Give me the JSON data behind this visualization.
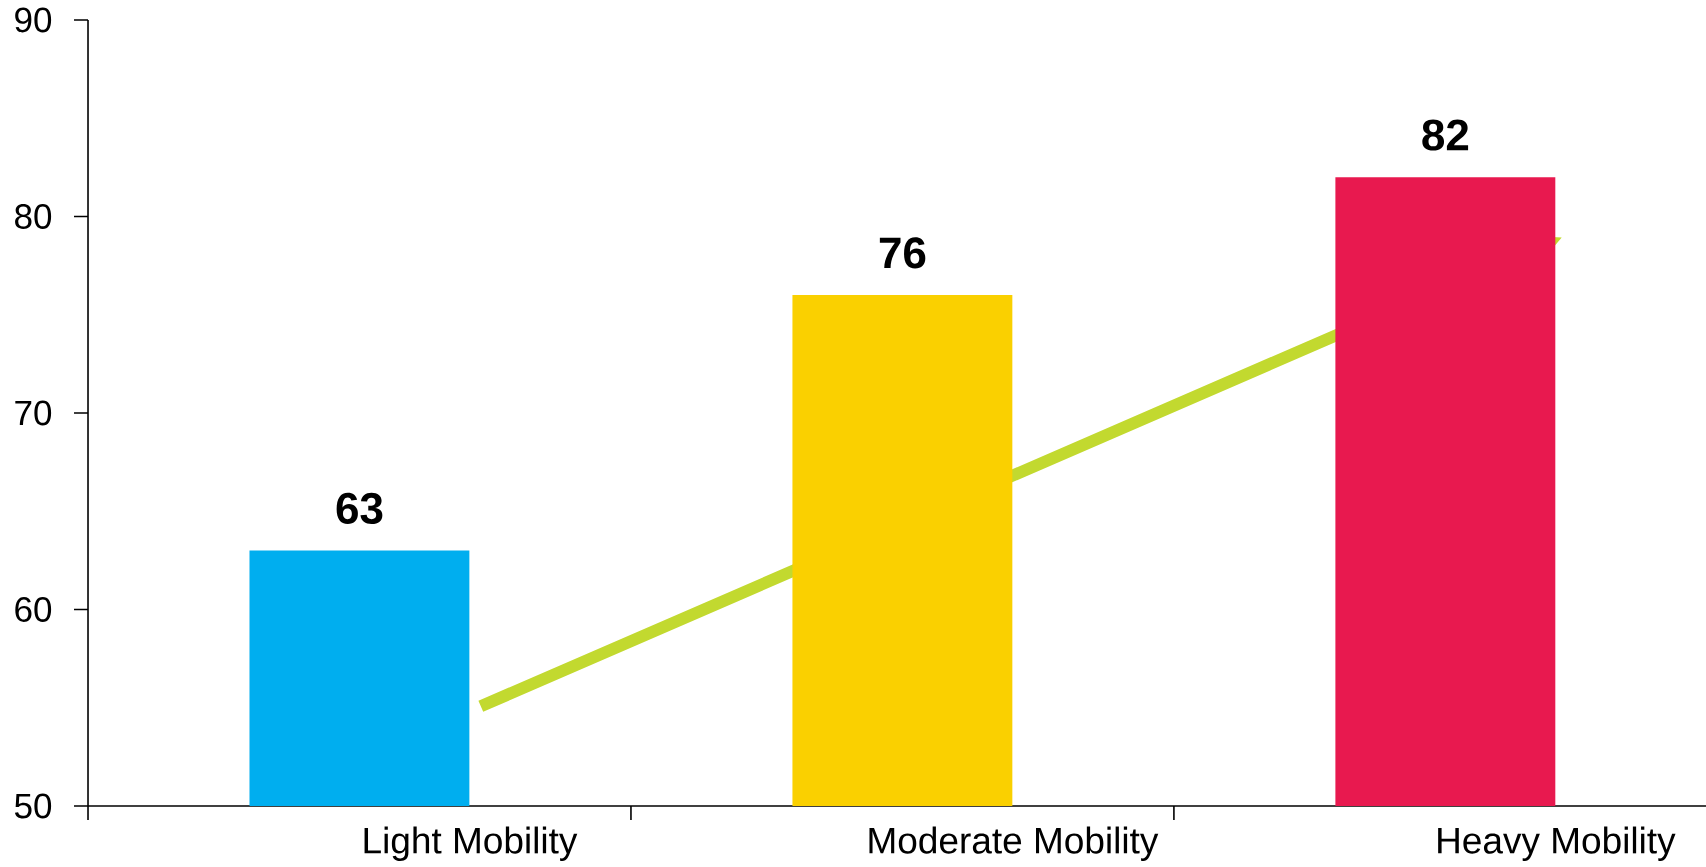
{
  "chart_data": {
    "type": "bar",
    "categories": [
      "Light Mobility",
      "Moderate Mobility",
      "Heavy Mobility"
    ],
    "values": [
      63,
      76,
      82
    ],
    "colors": [
      "#00aeef",
      "#fad000",
      "#e8194f"
    ],
    "data_labels": true,
    "ylim": [
      50,
      90
    ],
    "yticks": [
      50,
      60,
      70,
      80,
      90
    ]
  }
}
